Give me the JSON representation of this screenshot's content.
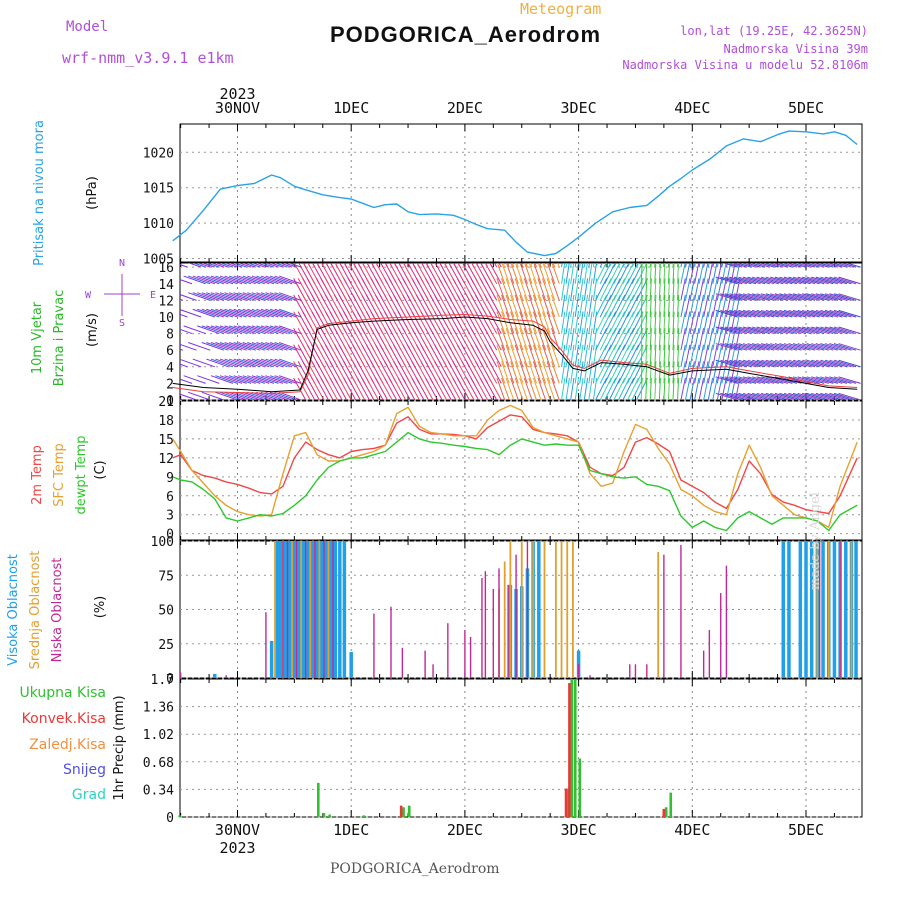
{
  "header": {
    "model_label": "Model",
    "model_name": "wrf-nmm_v3.9.1 e1km",
    "meteogram_label": "Meteogram",
    "station": "PODGORICA_Aerodrom",
    "lonlat": "lon,lat (19.25E, 42.3625N)",
    "elevation": "Nadmorska Visina 39m",
    "model_elevation": "Nadmorska Visina u modelu 52.8106m",
    "watermark": "made by Angel",
    "footer_station": "PODGORICA_Aerodrom"
  },
  "time_axis": {
    "year": "2023",
    "day_labels": [
      "30NOV",
      "1DEC",
      "2DEC",
      "3DEC",
      "4DEC",
      "5DEC"
    ],
    "range_days": [
      -0.57,
      5.45
    ]
  },
  "colors": {
    "pressure": "#2aa2e6",
    "temp2m": "#f04848",
    "sfc_temp": "#e8a030",
    "dewpoint": "#2ec82e",
    "high_cloud": "#20a0e8",
    "mid_cloud": "#e0a030",
    "low_cloud": "#c02898",
    "total_precip": "#30c030",
    "conv_precip": "#e83838",
    "snow": "#5050e0",
    "grad": "#30d0c0"
  },
  "chart_data": [
    {
      "type": "line",
      "panel": "pressure",
      "ylabel_main": "Pritisak na nivou mora",
      "ylabel_unit": "(hPa)",
      "ylim": [
        1004.5,
        1024
      ],
      "yticks": [
        1005,
        1010,
        1015,
        1020
      ],
      "grid": true,
      "series": [
        {
          "color_key": "pressure",
          "x": [
            -0.57,
            -0.45,
            -0.3,
            -0.15,
            0.0,
            0.15,
            0.3,
            0.38,
            0.5,
            0.6,
            0.75,
            0.9,
            1.0,
            1.1,
            1.2,
            1.3,
            1.4,
            1.5,
            1.6,
            1.75,
            1.9,
            2.0,
            2.1,
            2.2,
            2.35,
            2.45,
            2.55,
            2.7,
            2.8,
            2.9,
            3.0,
            3.15,
            3.3,
            3.45,
            3.6,
            3.7,
            3.8,
            3.9,
            4.0,
            4.15,
            4.3,
            4.45,
            4.6,
            4.75,
            4.85,
            5.0,
            5.15,
            5.25,
            5.35,
            5.45
          ],
          "y": [
            1007.5,
            1009.0,
            1011.8,
            1014.8,
            1015.3,
            1015.6,
            1016.8,
            1016.4,
            1015.2,
            1014.7,
            1014.0,
            1013.6,
            1013.4,
            1012.8,
            1012.2,
            1012.6,
            1012.7,
            1011.6,
            1011.2,
            1011.3,
            1011.1,
            1010.5,
            1009.8,
            1009.2,
            1009.0,
            1007.3,
            1005.9,
            1005.4,
            1005.7,
            1006.8,
            1008.0,
            1010.0,
            1011.6,
            1012.2,
            1012.5,
            1013.8,
            1015.2,
            1016.3,
            1017.5,
            1019.0,
            1020.9,
            1021.9,
            1021.5,
            1022.5,
            1023.0,
            1022.9,
            1022.6,
            1022.9,
            1022.4,
            1021.1
          ]
        }
      ]
    },
    {
      "type": "line",
      "panel": "wind",
      "ylabel_main": "10m Vjetar",
      "ylabel_sub": "Brzina i Pravac",
      "ylabel_unit": "(m/s)",
      "compass": [
        "W",
        "E",
        "N",
        "S"
      ],
      "ylim": [
        0,
        16.5
      ],
      "yticks": [
        0,
        4,
        8,
        12,
        16
      ],
      "yticks_labeled": [
        0,
        2,
        4,
        6,
        8,
        10,
        12,
        14,
        16
      ],
      "grid": true,
      "series": [
        {
          "name": "speed",
          "color": "#000000",
          "x": [
            -0.57,
            -0.3,
            0.0,
            0.3,
            0.55,
            0.62,
            0.7,
            0.8,
            1.0,
            1.2,
            1.5,
            1.8,
            2.0,
            2.2,
            2.4,
            2.6,
            2.7,
            2.75,
            2.85,
            2.95,
            3.05,
            3.2,
            3.4,
            3.6,
            3.8,
            4.0,
            4.3,
            4.5,
            4.8,
            5.0,
            5.2,
            5.45
          ],
          "y": [
            2.0,
            1.5,
            1.3,
            1.0,
            1.2,
            3.5,
            8.5,
            9.0,
            9.3,
            9.5,
            9.7,
            9.8,
            10.0,
            9.8,
            9.3,
            9.0,
            8.3,
            7.0,
            5.5,
            3.8,
            3.5,
            4.5,
            4.3,
            4.0,
            3.0,
            3.5,
            3.7,
            3.2,
            2.5,
            2.0,
            1.5,
            1.3
          ]
        },
        {
          "name": "gust",
          "color": "#e84040",
          "x": [
            -0.57,
            -0.3,
            0.0,
            0.3,
            0.55,
            0.62,
            0.7,
            0.8,
            1.0,
            1.2,
            1.5,
            1.8,
            2.0,
            2.2,
            2.4,
            2.6,
            2.7,
            2.75,
            2.85,
            2.95,
            3.05,
            3.2,
            3.4,
            3.6,
            3.8,
            4.0,
            4.3,
            4.5,
            4.8,
            5.0,
            5.2,
            5.45
          ],
          "y": [
            1.5,
            1.0,
            0.9,
            0.8,
            1.0,
            3.0,
            8.7,
            9.2,
            9.5,
            9.8,
            10.0,
            10.2,
            10.3,
            10.1,
            9.7,
            9.5,
            8.8,
            7.5,
            6.0,
            4.2,
            3.8,
            4.8,
            4.5,
            4.3,
            3.2,
            3.8,
            4.0,
            3.5,
            2.8,
            2.2,
            1.7,
            1.5
          ]
        }
      ]
    },
    {
      "type": "line",
      "panel": "temperature",
      "ylabel_series": [
        "2m Temp",
        "SFC Temp",
        "dewpt Temp"
      ],
      "ylabel_unit": "(C)",
      "ylim": [
        -1,
        21
      ],
      "yticks": [
        0,
        3,
        6,
        9,
        12,
        15,
        18,
        21
      ],
      "grid": true,
      "series": [
        {
          "color_key": "temp2m",
          "x": [
            -0.57,
            -0.5,
            -0.4,
            -0.3,
            -0.2,
            -0.1,
            0.0,
            0.1,
            0.2,
            0.3,
            0.4,
            0.5,
            0.6,
            0.7,
            0.8,
            0.9,
            1.0,
            1.1,
            1.2,
            1.3,
            1.4,
            1.5,
            1.6,
            1.7,
            1.8,
            1.9,
            2.0,
            2.1,
            2.2,
            2.3,
            2.4,
            2.5,
            2.6,
            2.7,
            2.8,
            2.9,
            3.0,
            3.1,
            3.2,
            3.3,
            3.4,
            3.5,
            3.6,
            3.7,
            3.8,
            3.9,
            4.0,
            4.1,
            4.2,
            4.3,
            4.4,
            4.5,
            4.6,
            4.7,
            4.8,
            4.9,
            5.0,
            5.1,
            5.2,
            5.3,
            5.45
          ],
          "y": [
            12,
            12.5,
            10,
            9.2,
            8.8,
            8.2,
            7.8,
            7.2,
            6.5,
            6.3,
            7.5,
            12,
            14.5,
            13.3,
            12.5,
            12,
            13,
            13.3,
            13.5,
            14,
            17.5,
            18.5,
            16.5,
            15.8,
            15.8,
            15.7,
            15.5,
            15,
            16.8,
            17.8,
            18.8,
            18.5,
            16.5,
            16,
            15.8,
            15.5,
            14.5,
            10.5,
            9.5,
            9.2,
            10.5,
            14.5,
            15.2,
            14.2,
            13,
            8.5,
            7.5,
            6.5,
            5,
            4,
            7,
            11.5,
            9.5,
            6.2,
            5,
            4.5,
            3.8,
            3.5,
            3.2,
            6,
            12
          ]
        },
        {
          "color_key": "sfc_temp",
          "x": [
            -0.57,
            -0.5,
            -0.4,
            -0.3,
            -0.2,
            -0.1,
            0.0,
            0.1,
            0.2,
            0.3,
            0.4,
            0.5,
            0.6,
            0.7,
            0.8,
            0.9,
            1.0,
            1.1,
            1.2,
            1.3,
            1.4,
            1.5,
            1.6,
            1.7,
            1.8,
            1.9,
            2.0,
            2.1,
            2.2,
            2.3,
            2.4,
            2.5,
            2.6,
            2.7,
            2.8,
            2.9,
            3.0,
            3.1,
            3.2,
            3.3,
            3.4,
            3.5,
            3.6,
            3.7,
            3.8,
            3.9,
            4.0,
            4.1,
            4.2,
            4.3,
            4.4,
            4.5,
            4.6,
            4.7,
            4.8,
            4.9,
            5.0,
            5.1,
            5.2,
            5.3,
            5.45
          ],
          "y": [
            15,
            13,
            10,
            8,
            6,
            4.5,
            3.5,
            3,
            2.8,
            3,
            9.5,
            15.5,
            16,
            12.5,
            11.5,
            11.5,
            12,
            12.5,
            13,
            14,
            19,
            20,
            17,
            16,
            15.8,
            15.5,
            15.5,
            15.5,
            18,
            19.5,
            20.3,
            19.5,
            16.8,
            16,
            15.5,
            15,
            14.5,
            9.5,
            7.5,
            8,
            13,
            17.3,
            16.5,
            13.5,
            11,
            7,
            6,
            4.5,
            3.5,
            3,
            9.5,
            14,
            10.5,
            6,
            4.5,
            3,
            2.5,
            2,
            1,
            7.5,
            14.5
          ]
        },
        {
          "color_key": "dewpoint",
          "x": [
            -0.57,
            -0.5,
            -0.4,
            -0.3,
            -0.2,
            -0.1,
            0.0,
            0.1,
            0.2,
            0.3,
            0.4,
            0.5,
            0.6,
            0.7,
            0.8,
            0.9,
            1.0,
            1.1,
            1.2,
            1.3,
            1.4,
            1.5,
            1.6,
            1.7,
            1.8,
            1.9,
            2.0,
            2.1,
            2.2,
            2.3,
            2.4,
            2.5,
            2.6,
            2.7,
            2.8,
            2.9,
            3.0,
            3.1,
            3.2,
            3.3,
            3.4,
            3.5,
            3.6,
            3.7,
            3.8,
            3.9,
            4.0,
            4.1,
            4.2,
            4.3,
            4.4,
            4.5,
            4.6,
            4.7,
            4.8,
            4.9,
            5.0,
            5.1,
            5.2,
            5.3,
            5.45
          ],
          "y": [
            9,
            8.5,
            8.2,
            7,
            5.5,
            2.5,
            2,
            2.5,
            3,
            2.8,
            3.2,
            4.5,
            6,
            8.5,
            10.5,
            11.5,
            12,
            12,
            12.5,
            13,
            14.5,
            16,
            15,
            14.5,
            14.3,
            14,
            13.8,
            13.5,
            13.3,
            12.5,
            14,
            15,
            14.5,
            14,
            14.2,
            14,
            14,
            10,
            9.5,
            9,
            8.8,
            9,
            7.8,
            7.5,
            6.8,
            2.8,
            1,
            2,
            1,
            0.5,
            2.5,
            3.5,
            2.5,
            1.5,
            2.5,
            2.5,
            2.5,
            2,
            0.5,
            3,
            4.5
          ]
        }
      ]
    },
    {
      "type": "bar",
      "panel": "clouds",
      "ylabel_series": [
        "Visoka Oblacnost",
        "Srednja Oblacnost",
        "Niska Oblacnost"
      ],
      "ylabel_unit": "(%)",
      "ylim": [
        0,
        100
      ],
      "yticks": [
        0,
        25,
        50,
        75,
        100
      ],
      "grid": true,
      "series": [
        {
          "color_key": "high_cloud",
          "x": [
            -0.2,
            0.3,
            0.35,
            0.38,
            0.42,
            0.46,
            0.5,
            0.54,
            0.58,
            0.62,
            0.66,
            0.7,
            0.74,
            0.78,
            0.82,
            0.86,
            0.9,
            0.94,
            1.0,
            2.4,
            2.45,
            2.5,
            2.55,
            2.6,
            2.65,
            3.0,
            4.8,
            4.85,
            4.95,
            5.0,
            5.05,
            5.1,
            5.15,
            5.2,
            5.25,
            5.3,
            5.35,
            5.4,
            5.44
          ],
          "y": [
            3,
            27,
            100,
            100,
            100,
            100,
            100,
            100,
            100,
            100,
            100,
            100,
            100,
            100,
            100,
            100,
            100,
            100,
            19,
            68,
            65,
            67,
            80,
            100,
            100,
            20,
            100,
            100,
            100,
            100,
            100,
            100,
            100,
            100,
            100,
            100,
            100,
            100,
            100
          ]
        },
        {
          "color_key": "mid_cloud",
          "x": [
            0.33,
            0.4,
            0.48,
            0.56,
            0.64,
            0.72,
            0.8,
            2.3,
            2.35,
            2.4,
            2.5,
            2.6,
            2.7,
            2.8,
            2.85,
            2.9,
            2.95,
            3.7,
            5.1,
            5.2,
            5.3,
            5.4
          ],
          "y": [
            100,
            100,
            100,
            100,
            100,
            100,
            100,
            65,
            85,
            100,
            100,
            100,
            100,
            100,
            100,
            100,
            100,
            92,
            100,
            100,
            100,
            100
          ]
        },
        {
          "color_key": "low_cloud",
          "x": [
            -0.5,
            -0.1,
            0.25,
            0.4,
            0.44,
            0.52,
            0.6,
            0.68,
            0.76,
            0.84,
            1.2,
            1.35,
            1.45,
            1.65,
            1.72,
            1.85,
            2.0,
            2.05,
            2.15,
            2.18,
            2.25,
            2.3,
            2.38,
            2.45,
            2.55,
            3.0,
            3.1,
            3.45,
            3.5,
            3.6,
            3.75,
            3.9,
            4.1,
            4.15,
            4.25,
            4.3,
            5.12,
            5.3
          ],
          "y": [
            4,
            2,
            48,
            100,
            100,
            100,
            100,
            100,
            100,
            100,
            47,
            52,
            22,
            20,
            10,
            40,
            35,
            30,
            73,
            78,
            65,
            80,
            68,
            90,
            100,
            10,
            2,
            10,
            10,
            10,
            90,
            97,
            20,
            35,
            62,
            82,
            100,
            100
          ]
        }
      ]
    },
    {
      "type": "bar",
      "panel": "precip",
      "legend": [
        "Ukupna Kisa",
        "Konvek.Kisa",
        "Zaledj.Kisa",
        "Snijeg",
        "Grad"
      ],
      "ylabel": "1hr Precip (mm)",
      "ylim": [
        0,
        1.7
      ],
      "yticks": [
        0,
        0.34,
        0.68,
        1.02,
        1.36,
        1.7
      ],
      "ytick_labels": [
        "0",
        "0.34",
        "0.68",
        "1.02",
        "1.36",
        "1.7"
      ],
      "grid": true,
      "series": [
        {
          "color_key": "total_precip",
          "x": [
            -0.52,
            0.7,
            0.75,
            0.8,
            1.1,
            1.45,
            1.5,
            2.9,
            2.93,
            2.96,
            3.0,
            3.76,
            3.8
          ],
          "y": [
            0.02,
            0.42,
            0.05,
            0.03,
            0.02,
            0.12,
            0.14,
            0.35,
            1.7,
            1.7,
            0.72,
            0.12,
            0.3
          ]
        },
        {
          "color_key": "conv_precip",
          "x": [
            1.45,
            2.9,
            2.93,
            3.76
          ],
          "y": [
            0.14,
            0.35,
            1.65,
            0.1
          ]
        }
      ]
    }
  ]
}
